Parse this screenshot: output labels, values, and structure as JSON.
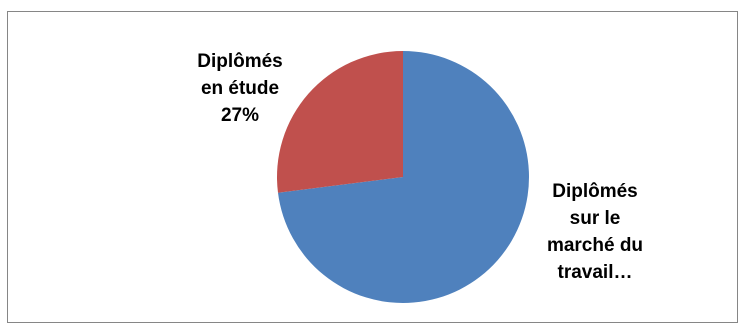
{
  "chart_data": {
    "type": "pie",
    "slices": [
      {
        "label_lines": [
          "Diplômés",
          "sur le",
          "marché du",
          "travail…"
        ],
        "value": 73,
        "color": "#4f81bd"
      },
      {
        "label_lines": [
          "Diplômés",
          "en étude",
          "27%"
        ],
        "value": 27,
        "color": "#c0504d"
      }
    ],
    "start_angle_deg": 0,
    "direction": "clockwise",
    "legend": "none"
  }
}
